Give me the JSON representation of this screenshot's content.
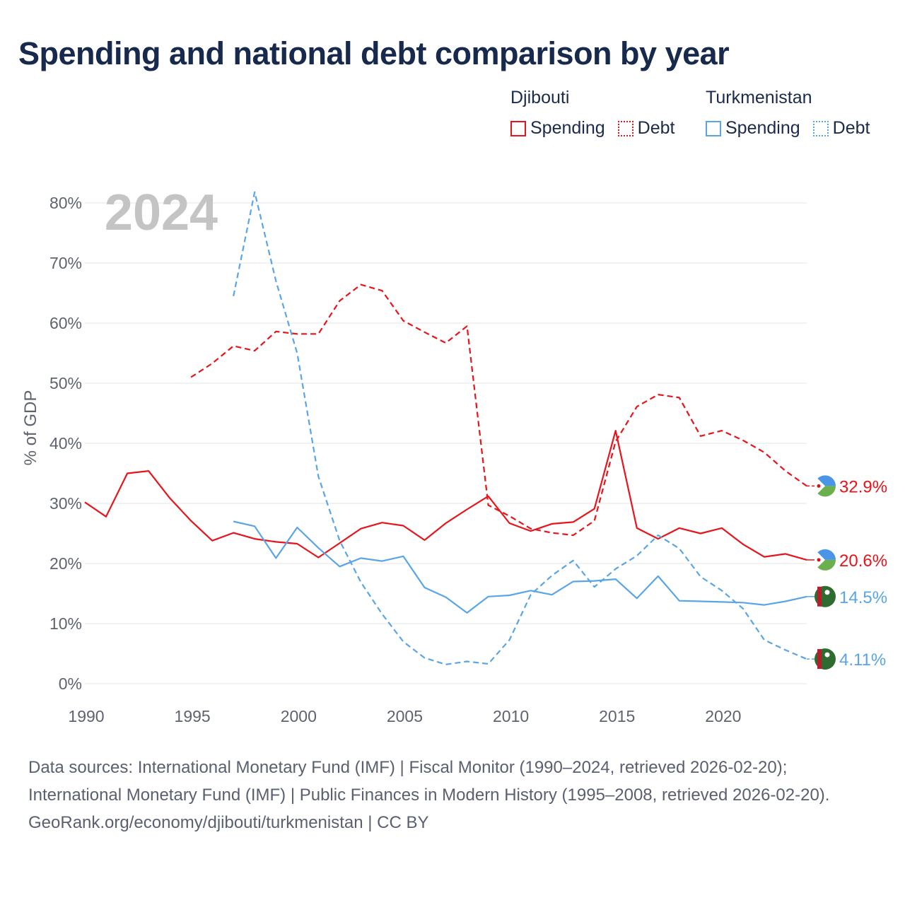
{
  "title": "Spending and national debt comparison by year",
  "legend": {
    "groups": [
      {
        "name": "Djibouti",
        "spending_label": "Spending",
        "debt_label": "Debt",
        "color": "#e8141b"
      },
      {
        "name": "Turkmenistan",
        "spending_label": "Spending",
        "debt_label": "Debt",
        "color": "#5aa5e6"
      }
    ]
  },
  "year_label": "2024",
  "footer": {
    "sources": "Data sources: International Monetary Fund (IMF) | Fiscal Monitor (1990–2024, retrieved 2026-02-20); International Monetary Fund (IMF) | Public Finances in Modern History (1995–2008, retrieved 2026-02-20).",
    "credit": "GeoRank.org/economy/djibouti/turkmenistan | CC BY"
  },
  "chart_data": {
    "type": "line",
    "ylabel": "% of GDP",
    "xlim": [
      1990,
      2024
    ],
    "ylim": [
      0,
      80
    ],
    "x_ticks": [
      1990,
      1995,
      2000,
      2005,
      2010,
      2015,
      2020
    ],
    "y_ticks": [
      0,
      10,
      20,
      30,
      40,
      50,
      60,
      70,
      80
    ],
    "y_tick_labels": [
      "0%",
      "10%",
      "20%",
      "30%",
      "40%",
      "50%",
      "60%",
      "70%",
      "80%"
    ],
    "grid": true,
    "series": [
      {
        "name": "Djibouti Debt",
        "country": "Djibouti",
        "kind": "debt",
        "style": "dashed",
        "color": "#e8141b",
        "x": [
          1995,
          1996,
          1997,
          1998,
          1999,
          2000,
          2001,
          2002,
          2003,
          2004,
          2005,
          2006,
          2007,
          2008,
          2009,
          2010,
          2011,
          2012,
          2013,
          2014,
          2015,
          2016,
          2017,
          2018,
          2019,
          2020,
          2021,
          2022,
          2023,
          2024
        ],
        "values": [
          51.0,
          53.3,
          56.2,
          55.4,
          58.6,
          58.2,
          58.2,
          63.7,
          66.4,
          65.4,
          60.4,
          58.5,
          56.7,
          59.5,
          29.7,
          27.9,
          25.8,
          25.1,
          24.7,
          27.1,
          40.3,
          46.1,
          48.1,
          47.6,
          41.2,
          42.1,
          40.5,
          38.5,
          35.4,
          32.9
        ],
        "end_label": "32.9%"
      },
      {
        "name": "Djibouti Spending",
        "country": "Djibouti",
        "kind": "spending",
        "style": "solid",
        "color": "#e8141b",
        "x": [
          1990,
          1991,
          1992,
          1993,
          1994,
          1995,
          1996,
          1997,
          1998,
          1999,
          2000,
          2001,
          2002,
          2003,
          2004,
          2005,
          2006,
          2007,
          2008,
          2009,
          2010,
          2011,
          2012,
          2013,
          2014,
          2015,
          2016,
          2017,
          2018,
          2019,
          2020,
          2021,
          2022,
          2023,
          2024
        ],
        "values": [
          30.2,
          27.8,
          35.0,
          35.4,
          30.9,
          27.1,
          23.8,
          25.1,
          24.1,
          23.6,
          23.3,
          21.0,
          23.4,
          25.8,
          26.8,
          26.3,
          23.9,
          26.7,
          29.0,
          31.2,
          26.7,
          25.4,
          26.6,
          26.9,
          29.1,
          42.1,
          25.9,
          24.1,
          25.9,
          25.0,
          25.9,
          23.2,
          21.1,
          21.6,
          20.6
        ],
        "end_label": "20.6%"
      },
      {
        "name": "Turkmenistan Spending",
        "country": "Turkmenistan",
        "kind": "spending",
        "style": "solid",
        "color": "#5aa5e6",
        "x": [
          1997,
          1998,
          1999,
          2000,
          2001,
          2002,
          2003,
          2004,
          2005,
          2006,
          2007,
          2008,
          2009,
          2010,
          2011,
          2012,
          2013,
          2014,
          2015,
          2016,
          2017,
          2018,
          2019,
          2020,
          2021,
          2022,
          2023,
          2024
        ],
        "values": [
          27.0,
          26.2,
          20.9,
          26.0,
          22.6,
          19.5,
          20.9,
          20.4,
          21.2,
          16.0,
          14.4,
          11.8,
          14.5,
          14.7,
          15.5,
          14.8,
          17.0,
          17.1,
          17.4,
          14.2,
          17.9,
          13.8,
          13.7,
          13.6,
          13.5,
          13.1,
          13.7,
          14.5
        ],
        "end_label": "14.5%"
      },
      {
        "name": "Turkmenistan Debt",
        "country": "Turkmenistan",
        "kind": "debt",
        "style": "dashed",
        "color": "#5aa5e6",
        "x": [
          1997,
          1998,
          1999,
          2000,
          2001,
          2002,
          2003,
          2004,
          2005,
          2006,
          2007,
          2008,
          2009,
          2010,
          2011,
          2012,
          2013,
          2014,
          2015,
          2016,
          2017,
          2018,
          2019,
          2020,
          2021,
          2022,
          2023,
          2024
        ],
        "values": [
          64.5,
          81.8,
          67.0,
          55.0,
          34.5,
          23.8,
          16.9,
          11.6,
          7.0,
          4.3,
          3.2,
          3.7,
          3.3,
          7.3,
          14.8,
          18.0,
          20.5,
          16.1,
          19.1,
          21.3,
          24.7,
          22.5,
          17.8,
          15.5,
          12.5,
          7.3,
          5.6,
          4.11
        ],
        "end_label": "4.11%"
      }
    ]
  }
}
